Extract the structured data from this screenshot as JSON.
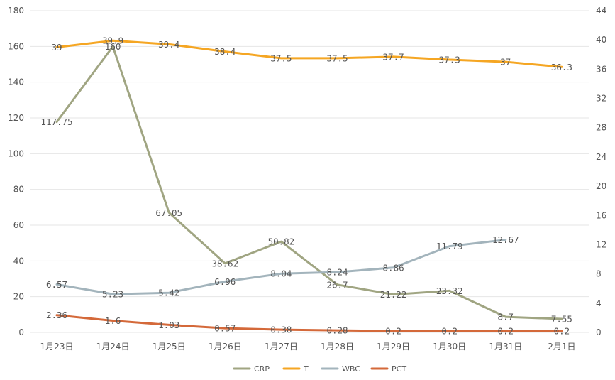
{
  "chart_data": {
    "type": "line",
    "categories": [
      "1月23日",
      "1月24日",
      "1月25日",
      "1月26日",
      "1月27日",
      "1月28日",
      "1月29日",
      "1月30日",
      "1月31日",
      "2月1日"
    ],
    "y_left": {
      "min": 0,
      "max": 180,
      "ticks": [
        0,
        20,
        40,
        60,
        80,
        100,
        120,
        140,
        160,
        180
      ]
    },
    "y_right": {
      "min": 0,
      "max": 44,
      "ticks": [
        0,
        4,
        8,
        12,
        16,
        20,
        24,
        28,
        32,
        36,
        40,
        44
      ]
    },
    "grid": true,
    "legend_position": "bottom",
    "series": [
      {
        "name": "CRP",
        "axis": "left",
        "color": "#a0a582",
        "values": [
          117.75,
          160,
          67.05,
          38.62,
          50.82,
          26.7,
          21.22,
          23.32,
          8.7,
          7.55
        ],
        "labels": [
          "117.75",
          "160",
          "67.05",
          "38.62",
          "50.82",
          "26.7",
          "21.22",
          "23.32",
          "8.7",
          "7.55"
        ]
      },
      {
        "name": "T",
        "axis": "right",
        "color": "#f5a623",
        "values": [
          39,
          39.9,
          39.4,
          38.4,
          37.5,
          37.5,
          37.7,
          37.3,
          37,
          36.3
        ],
        "labels": [
          "39",
          "39.9",
          "39.4",
          "38.4",
          "37.5",
          "37.5",
          "37.7",
          "37.3",
          "37",
          "36.3"
        ]
      },
      {
        "name": "WBC",
        "axis": "right",
        "color": "#a3b4bc",
        "values": [
          6.57,
          5.23,
          5.42,
          6.96,
          8.04,
          8.24,
          8.86,
          11.79,
          12.67,
          null
        ],
        "labels": [
          "6.57",
          "5.23",
          "5.42",
          "6.96",
          "8.04",
          "8.24",
          "8.86",
          "11.79",
          "12.67",
          ""
        ]
      },
      {
        "name": "PCT",
        "axis": "right",
        "color": "#d4693a",
        "values": [
          2.36,
          1.6,
          1.03,
          0.57,
          0.38,
          0.28,
          0.2,
          0.2,
          0.2,
          0.2
        ],
        "labels": [
          "2.36",
          "1.6",
          "1.03",
          "0.57",
          "0.38",
          "0.28",
          "0.2",
          "0.2",
          "0.2",
          "0.2"
        ]
      }
    ]
  }
}
